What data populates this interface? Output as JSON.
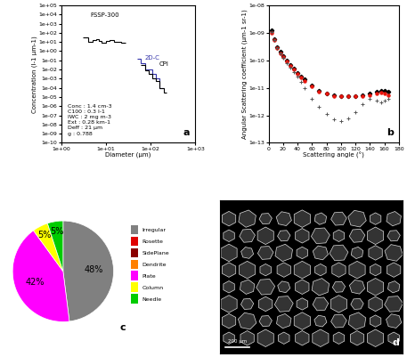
{
  "chart_data": [
    {
      "type": "step",
      "panel": "a",
      "xlabel": "Diameter (µm)",
      "ylabel": "Concentration (l-1 µm-1)",
      "log": true,
      "xlim": [
        1,
        1000
      ],
      "xticks": [
        {
          "value": 1,
          "label": "1e+00"
        },
        {
          "value": 10,
          "label": "1e+01"
        },
        {
          "value": 100,
          "label": "1e+02"
        },
        {
          "value": 1000,
          "label": "1e+03"
        }
      ],
      "ylim": [
        1e-10,
        100000
      ],
      "yticks": [
        {
          "value": 1e-10,
          "label": "1e-10"
        },
        {
          "value": 1e-09,
          "label": "1e-09"
        },
        {
          "value": 1e-08,
          "label": "1e-08"
        },
        {
          "value": 1e-07,
          "label": "1e-07"
        },
        {
          "value": 1e-06,
          "label": "1e-06"
        },
        {
          "value": 1e-05,
          "label": "1e-05"
        },
        {
          "value": 0.0001,
          "label": "1e-04"
        },
        {
          "value": 0.001,
          "label": "1e-03"
        },
        {
          "value": 0.01,
          "label": "1e-02"
        },
        {
          "value": 0.1,
          "label": "1e-01"
        },
        {
          "value": 1,
          "label": "1e+00"
        },
        {
          "value": 10,
          "label": "1e+01"
        },
        {
          "value": 100,
          "label": "1e+02"
        },
        {
          "value": 1000,
          "label": "1e+03"
        },
        {
          "value": 10000,
          "label": "1e+04"
        },
        {
          "value": 100000,
          "label": "1e+05"
        }
      ],
      "series": [
        {
          "name": "FSSP-300",
          "color": "#000000",
          "bins": [
            3,
            3.5,
            4,
            5,
            6,
            7,
            8,
            10,
            12,
            15,
            18,
            22,
            27
          ],
          "values": [
            30,
            30,
            10,
            15,
            20,
            12,
            8,
            12,
            15,
            10,
            10,
            8
          ]
        },
        {
          "name": "2D-C",
          "color": "#3333aa",
          "bins": [
            50,
            60,
            75,
            90,
            110,
            130,
            160,
            200
          ],
          "values": [
            0.15,
            0.05,
            0.01,
            0.01,
            0.003,
            0.001,
            0.0001
          ]
        },
        {
          "name": "CPI",
          "color": "#000000",
          "bins": [
            60,
            75,
            90,
            110,
            130,
            160,
            200,
            230
          ],
          "values": [
            0.03,
            0.008,
            0.003,
            0.001,
            0.0005,
            0.0001,
            3e-05
          ]
        }
      ],
      "stats": [
        "Conc : 1.4 cm-3",
        "C100 : 0.3 l-1",
        "IWC : 2 mg m-3",
        "Ext : 0.28 km-1",
        "Deff : 21 µm",
        "g : 0.788"
      ]
    },
    {
      "type": "scatter",
      "panel": "b",
      "xlabel": "Scattering angle (°)",
      "ylabel": "Angular Scattering coefficient (µm-1 sr-1)",
      "log": "y",
      "xlim": [
        0,
        180
      ],
      "xticks": [
        0,
        20,
        40,
        60,
        80,
        100,
        120,
        140,
        160,
        180
      ],
      "ylim": [
        1e-13,
        1e-08
      ],
      "yticks": [
        {
          "value": 1e-13,
          "label": "1e-13"
        },
        {
          "value": 1e-12,
          "label": "1e-12"
        },
        {
          "value": 1e-11,
          "label": "1e-11"
        },
        {
          "value": 1e-10,
          "label": "1e-10"
        },
        {
          "value": 1e-09,
          "label": "1e-09"
        },
        {
          "value": 1e-08,
          "label": "1e-08"
        }
      ],
      "x": [
        4,
        8,
        12,
        16,
        20,
        25,
        30,
        35,
        40,
        45,
        50,
        60,
        70,
        80,
        90,
        100,
        110,
        120,
        130,
        140,
        150,
        155,
        160,
        165
      ],
      "series": [
        {
          "color": "#000000",
          "marker": "diamond",
          "values": [
            1.2e-09,
            6e-10,
            3e-10,
            2e-10,
            1.4e-10,
            1e-10,
            7e-11,
            5e-11,
            3.5e-11,
            2.5e-11,
            2e-11,
            1.2e-11,
            8e-12,
            6e-12,
            5.5e-12,
            5e-12,
            5e-12,
            5e-12,
            5.5e-12,
            6e-12,
            7e-12,
            8e-12,
            8e-12,
            7e-12
          ]
        },
        {
          "color": "#e8150d",
          "marker": "circle",
          "values": [
            1e-09,
            5.5e-10,
            2.7e-10,
            1.8e-10,
            1.3e-10,
            9e-11,
            6.5e-11,
            4.5e-11,
            3.2e-11,
            2.3e-11,
            1.8e-11,
            1.1e-11,
            7.5e-12,
            6e-12,
            5e-12,
            5e-12,
            4.8e-12,
            4.8e-12,
            5e-12,
            5.5e-12,
            6e-12,
            6.5e-12,
            6e-12,
            5.5e-12
          ]
        },
        {
          "color": "#555555",
          "marker": "plus",
          "values": [
            1.1e-09,
            5.5e-10,
            2.8e-10,
            1.8e-10,
            1.2e-10,
            8e-11,
            5.5e-11,
            3.8e-11,
            2.5e-11,
            1.6e-11,
            1e-11,
            4e-12,
            2e-12,
            1.1e-12,
            7e-13,
            6e-13,
            8e-13,
            1.3e-12,
            2.5e-12,
            4e-12,
            3.5e-12,
            3e-12,
            3.5e-12,
            4e-12
          ]
        }
      ]
    },
    {
      "type": "pie",
      "panel": "c",
      "categories": [
        "Irregular",
        "Rosette",
        "SidePlane",
        "Dendrite",
        "Plate",
        "Column",
        "Needle"
      ],
      "values": [
        48,
        0,
        0,
        0,
        42,
        5,
        5
      ],
      "value_labels": [
        "48%",
        null,
        null,
        null,
        "42%",
        "5%",
        "5%"
      ],
      "colors": [
        "#808080",
        "#e00000",
        "#8b0000",
        "#ff8000",
        "#ff00ff",
        "#ffff00",
        "#00cc00"
      ],
      "legend": "right",
      "data_labels": true
    },
    {
      "type": "image",
      "panel": "d",
      "scale_bar": "200 µm"
    }
  ]
}
